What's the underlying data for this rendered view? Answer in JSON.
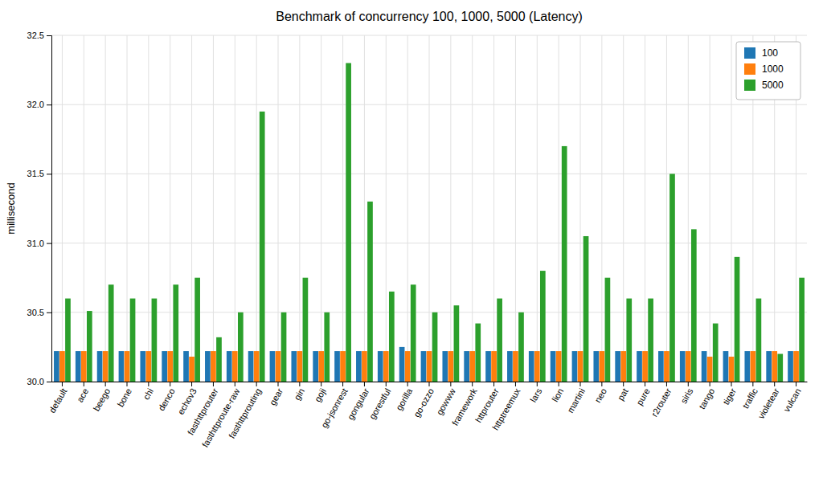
{
  "chart_data": {
    "type": "bar",
    "title": "Benchmark of concurrency 100, 1000, 5000 (Latency)",
    "ylabel": "millisecond",
    "categories": [
      "default",
      "ace",
      "beego",
      "bone",
      "chi",
      "denco",
      "echov3",
      "fasthttprouter",
      "fasthttproute-raw",
      "fasthttprouting",
      "gear",
      "gin",
      "goji",
      "go-jsonrest",
      "gongular",
      "gorestful",
      "gorilla",
      "go-ozzo",
      "gowww",
      "framework",
      "httprouter",
      "httptreemux",
      "lars",
      "lion",
      "martini",
      "neo",
      "pat",
      "pure",
      "r2router",
      "siris",
      "tango",
      "tiger",
      "traffic",
      "violetear",
      "vulcan"
    ],
    "series": [
      {
        "name": "100",
        "values": [
          30.22,
          30.22,
          30.22,
          30.22,
          30.22,
          30.22,
          30.22,
          30.22,
          30.22,
          30.22,
          30.22,
          30.22,
          30.22,
          30.22,
          30.22,
          30.22,
          30.25,
          30.22,
          30.22,
          30.22,
          30.22,
          30.22,
          30.22,
          30.22,
          30.22,
          30.22,
          30.22,
          30.22,
          30.22,
          30.22,
          30.22,
          30.22,
          30.22,
          30.22,
          30.22
        ]
      },
      {
        "name": "1000",
        "values": [
          30.22,
          30.22,
          30.22,
          30.22,
          30.22,
          30.22,
          30.18,
          30.22,
          30.22,
          30.22,
          30.22,
          30.22,
          30.22,
          30.22,
          30.22,
          30.22,
          30.22,
          30.22,
          30.22,
          30.22,
          30.22,
          30.22,
          30.22,
          30.22,
          30.22,
          30.22,
          30.22,
          30.22,
          30.22,
          30.22,
          30.18,
          30.18,
          30.22,
          30.22,
          30.22
        ]
      },
      {
        "name": "5000",
        "values": [
          30.6,
          30.51,
          30.7,
          30.6,
          30.6,
          30.7,
          30.75,
          30.32,
          30.5,
          31.95,
          30.5,
          30.75,
          30.5,
          32.3,
          31.3,
          30.65,
          30.7,
          30.5,
          30.55,
          30.42,
          30.6,
          30.5,
          30.8,
          31.7,
          31.05,
          30.75,
          30.6,
          30.6,
          31.5,
          31.1,
          30.42,
          30.9,
          30.6,
          30.2,
          30.75
        ]
      }
    ],
    "ylim": [
      30.0,
      32.5
    ],
    "yticks": [
      {
        "value": 30.0,
        "label": "30.0"
      },
      30.5,
      {
        "value": 31.0,
        "label": "31.0"
      },
      31.5,
      {
        "value": 32.0,
        "label": "32.0"
      },
      32.5
    ],
    "grid": true,
    "legend": "upper-right"
  }
}
